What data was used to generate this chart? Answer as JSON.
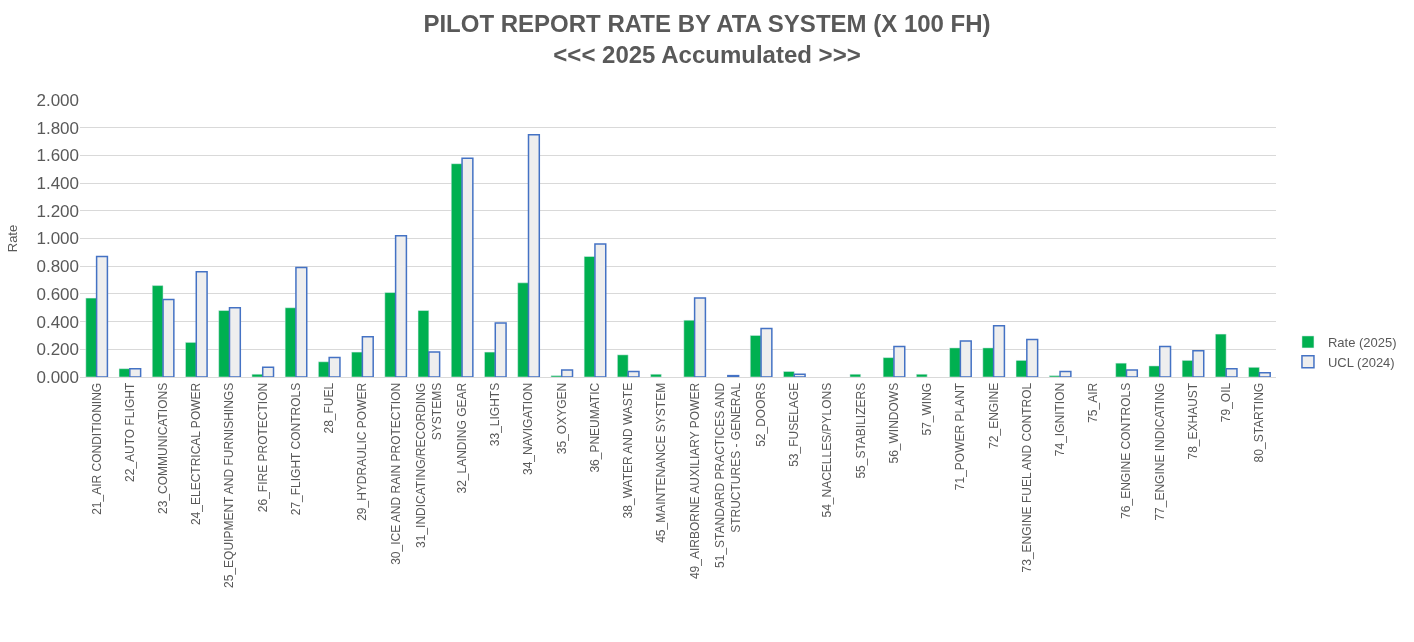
{
  "chart_data": {
    "type": "bar",
    "title": "PILOT REPORT RATE BY ATA SYSTEM (X 100 FH)",
    "subtitle": "<<< 2025 Accumulated >>>",
    "ylabel": "Rate",
    "categories": [
      "21_AIR CONDITIONING",
      "22_AUTO FLIGHT",
      "23_COMMUNICATIONS",
      "24_ELECTRICAL POWER",
      "25_EQUIPMENT AND FURNISHINGS",
      "26_FIRE PROTECTION",
      "27_FLIGHT CONTROLS",
      "28_FUEL",
      "29_HYDRAULIC POWER",
      "30_ICE AND RAIN PROTECTION",
      "31_INDICATING/RECORDING SYSTEMS",
      "32_LANDING GEAR",
      "33_LIGHTS",
      "34_NAVIGATION",
      "35_OXYGEN",
      "36_PNEUMATIC",
      "38_WATER AND WASTE",
      "45_MAINTENANCE SYSTEM",
      "49_AIRBORNE AUXILIARY POWER",
      "51_STANDARD PRACTICES AND STRUCTURES - GENERAL",
      "52_DOORS",
      "53_FUSELAGE",
      "54_NACELLES/PYLONS",
      "55_STABILIZERS",
      "56_WINDOWS",
      "57_WING",
      "71_POWER PLANT",
      "72_ENGINE",
      "73_ENGINE FUEL AND CONTROL",
      "74_IGNITION",
      "75_AIR",
      "76_ENGINE CONTROLS",
      "77_ENGINE INDICATING",
      "78_EXHAUST",
      "79_OIL",
      "80_STARTING"
    ],
    "series": [
      {
        "name": "Rate (2025)",
        "color": "#00b050",
        "values": [
          0.57,
          0.06,
          0.66,
          0.25,
          0.48,
          0.02,
          0.5,
          0.11,
          0.18,
          0.61,
          0.48,
          1.54,
          0.18,
          0.68,
          0.01,
          0.87,
          0.16,
          0.02,
          0.41,
          null,
          0.3,
          0.04,
          null,
          0.02,
          0.14,
          0.02,
          0.21,
          0.21,
          0.12,
          0.01,
          null,
          0.1,
          0.08,
          0.12,
          0.31,
          0.07
        ]
      },
      {
        "name": "UCL (2024)",
        "color": "#4472c4",
        "values": [
          0.87,
          0.06,
          0.56,
          0.76,
          0.5,
          0.07,
          0.79,
          0.14,
          0.29,
          1.02,
          0.18,
          1.58,
          0.39,
          1.75,
          0.05,
          0.96,
          0.04,
          null,
          0.57,
          0.01,
          0.35,
          0.02,
          null,
          null,
          0.22,
          null,
          0.26,
          0.37,
          0.27,
          0.04,
          null,
          0.05,
          0.22,
          0.19,
          0.06,
          0.03
        ]
      }
    ],
    "ylim": [
      0,
      2.0
    ],
    "yticks": [
      {
        "value": 0,
        "label": "0.000"
      },
      {
        "value": 0.2,
        "label": "0.200"
      },
      {
        "value": 0.4,
        "label": "0.400"
      },
      {
        "value": 0.6,
        "label": "0.600"
      },
      {
        "value": 0.8,
        "label": "0.800"
      },
      {
        "value": 1.0,
        "label": "1.000"
      },
      {
        "value": 1.2,
        "label": "1.200"
      },
      {
        "value": 1.4,
        "label": "1.400"
      },
      {
        "value": 1.6,
        "label": "1.600"
      },
      {
        "value": 1.8,
        "label": "1.800"
      },
      {
        "value": 2.0,
        "label": "2.000"
      }
    ],
    "grid": "y",
    "legend": "right"
  }
}
